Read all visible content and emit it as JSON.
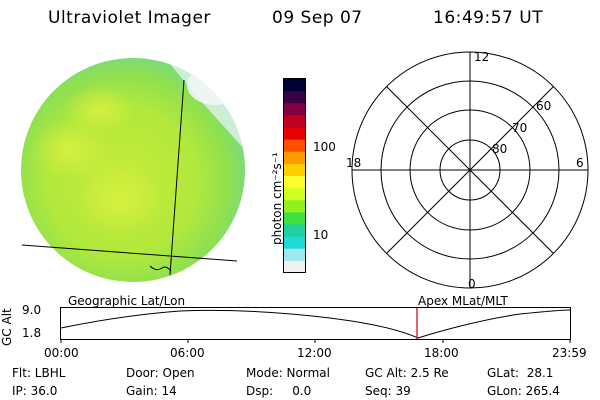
{
  "header": {
    "instrument": "Ultraviolet Imager",
    "date": "09 Sep 07",
    "time": "16:49:57 UT"
  },
  "colorbar": {
    "label": "photon cm⁻²s⁻¹",
    "ticks": [
      "100",
      "10"
    ],
    "colors": [
      "#000033",
      "#3a0046",
      "#800040",
      "#c00020",
      "#e80000",
      "#ff5000",
      "#ff9a00",
      "#ffd000",
      "#ffff30",
      "#d0ff20",
      "#90f020",
      "#40e040",
      "#20d0a0",
      "#20d8d8",
      "#a0e8f0",
      "#f0f0f0"
    ]
  },
  "polar_plot": {
    "mlt_labels": [
      "12",
      "18",
      "6",
      "0"
    ],
    "lat_labels": [
      "60",
      "70",
      "80"
    ]
  },
  "timeline": {
    "y_axis_label": "GC Alt",
    "y_ticks": [
      "9.0",
      "1.8"
    ],
    "left_title": "Geographic Lat/Lon",
    "right_title": "Apex MLat/MLT",
    "x_ticks": [
      "00:00",
      "06:00",
      "12:00",
      "18:00",
      "23:59"
    ],
    "marker_color": "#cc0000"
  },
  "info": {
    "row1": {
      "filter": "Flt: LBHL",
      "door": "Door: Open",
      "mode": "Mode: Normal",
      "gc_alt": "GC Alt: 2.5 Re",
      "glat": "GLat:  28.1"
    },
    "row2": {
      "ip": "IP: 36.0",
      "gain": "Gain: 14",
      "dsp": "Dsp:     0.0",
      "seq": "Seq: 39",
      "glon": "GLon: 265.4"
    }
  }
}
